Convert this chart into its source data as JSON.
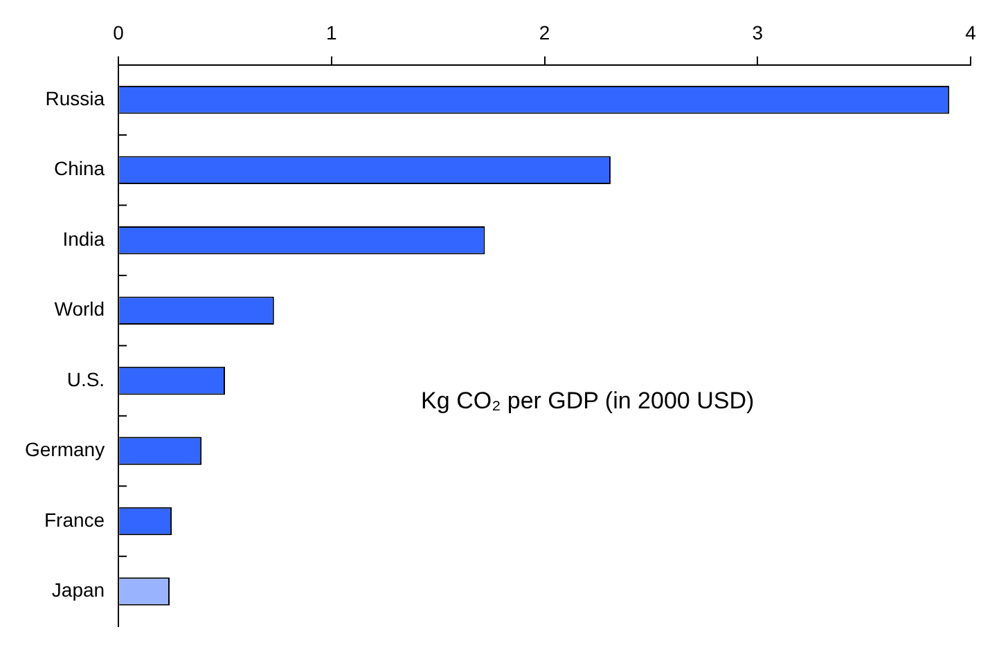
{
  "chart_data": {
    "type": "bar",
    "orientation": "horizontal",
    "categories": [
      "Russia",
      "China",
      "India",
      "World",
      "U.S.",
      "Germany",
      "France",
      "Japan"
    ],
    "values": [
      3.9,
      2.31,
      1.72,
      0.73,
      0.5,
      0.39,
      0.25,
      0.24
    ],
    "colors": [
      "#3366ff",
      "#3366ff",
      "#3366ff",
      "#3366ff",
      "#3366ff",
      "#3366ff",
      "#3366ff",
      "#99b3ff"
    ],
    "xlim": [
      0,
      4
    ],
    "xticks": [
      0,
      1,
      2,
      3,
      4
    ],
    "grid": false,
    "legend": false,
    "annotations": [
      "Kg CO₂ per GDP (in 2000 USD)"
    ]
  }
}
